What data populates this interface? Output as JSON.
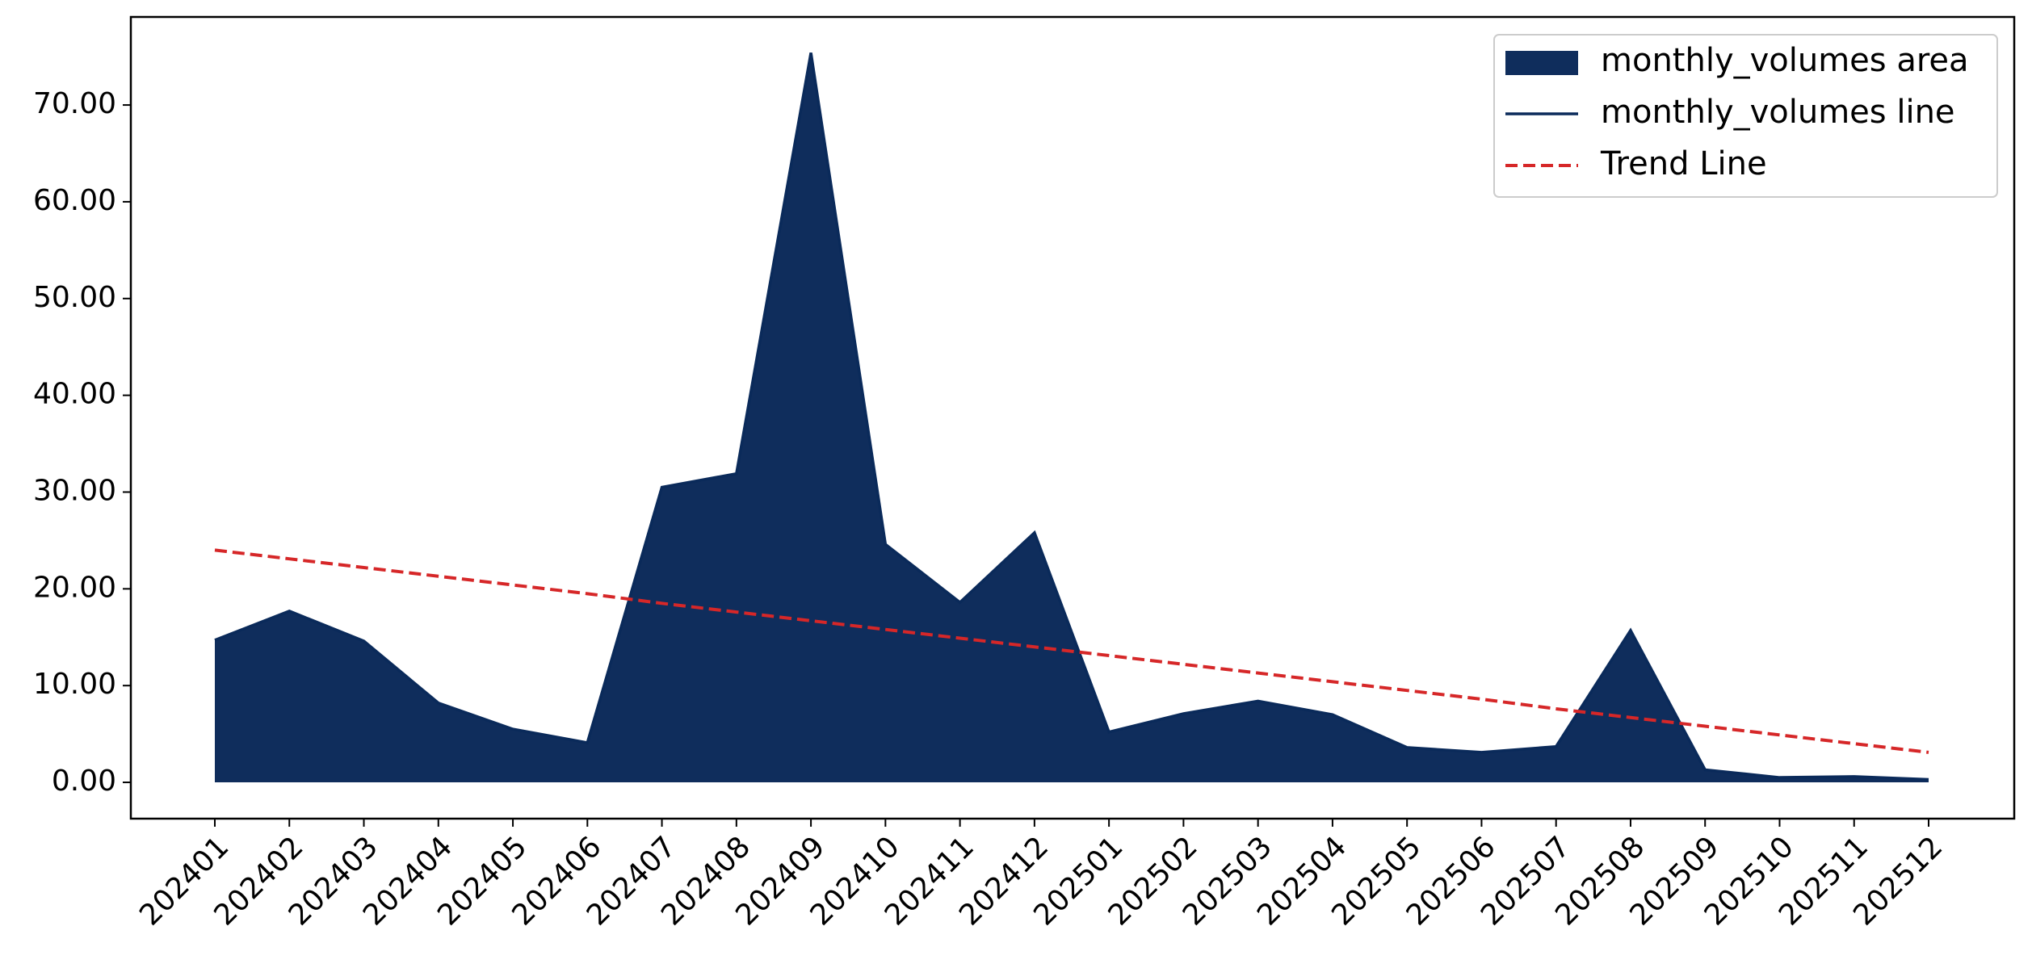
{
  "chart_data": {
    "type": "area",
    "categories": [
      "202401",
      "202402",
      "202403",
      "202404",
      "202405",
      "202406",
      "202407",
      "202408",
      "202409",
      "202410",
      "202411",
      "202412",
      "202501",
      "202502",
      "202503",
      "202504",
      "202505",
      "202506",
      "202507",
      "202508",
      "202509",
      "202510",
      "202511",
      "202512"
    ],
    "series": [
      {
        "name": "monthly_volumes area",
        "kind": "area",
        "color": "#0f2d5c",
        "values": [
          14.7,
          17.7,
          14.6,
          8.2,
          5.5,
          4.1,
          30.5,
          31.9,
          75.4,
          24.6,
          18.6,
          25.8,
          5.2,
          7.1,
          8.4,
          7.0,
          3.6,
          3.1,
          3.7,
          15.7,
          1.3,
          0.5,
          0.6,
          0.3
        ]
      },
      {
        "name": "monthly_volumes line",
        "kind": "line",
        "color": "#0a2a5a",
        "values": [
          14.7,
          17.7,
          14.6,
          8.2,
          5.5,
          4.1,
          30.5,
          31.9,
          75.4,
          24.6,
          18.6,
          25.8,
          5.2,
          7.1,
          8.4,
          7.0,
          3.6,
          3.1,
          3.7,
          15.7,
          1.3,
          0.5,
          0.6,
          0.3
        ]
      },
      {
        "name": "Trend Line",
        "kind": "dashed",
        "color": "#d62728",
        "values": [
          24.0,
          23.1,
          22.2,
          21.3,
          20.4,
          19.5,
          18.5,
          17.6,
          16.7,
          15.8,
          14.9,
          14.0,
          13.1,
          12.2,
          11.3,
          10.4,
          9.5,
          8.6,
          7.6,
          6.7,
          5.8,
          4.9,
          4.0,
          3.1
        ]
      }
    ],
    "ylim": [
      -3.75,
      79.1
    ],
    "yticks": [
      {
        "value": 0,
        "label": "0.00"
      },
      {
        "value": 10,
        "label": "10.00"
      },
      {
        "value": 20,
        "label": "20.00"
      },
      {
        "value": 30,
        "label": "30.00"
      },
      {
        "value": 40,
        "label": "40.00"
      },
      {
        "value": 50,
        "label": "50.00"
      },
      {
        "value": 60,
        "label": "60.00"
      },
      {
        "value": 70,
        "label": "70.00"
      }
    ],
    "grid": false,
    "legend": "upper right"
  }
}
